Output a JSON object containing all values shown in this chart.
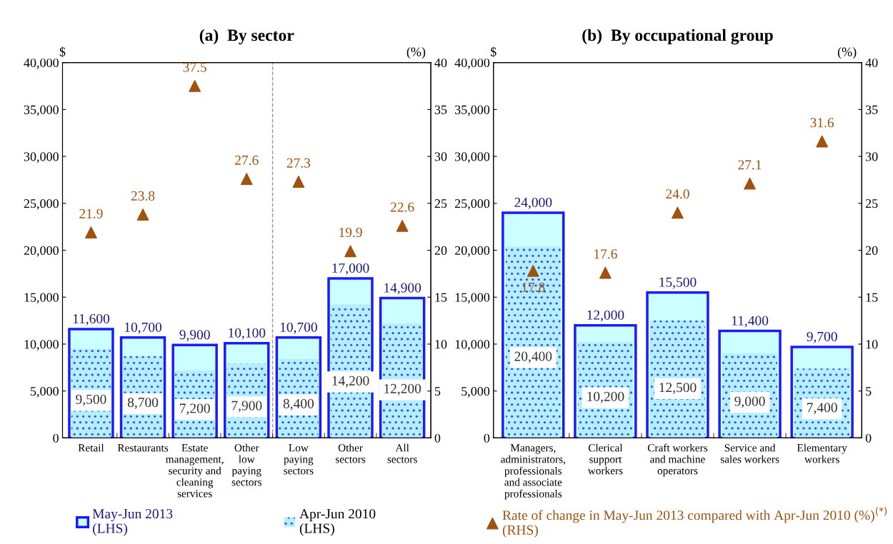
{
  "chart_data": [
    {
      "type": "bar",
      "title": "(a)  By sector",
      "ylabel": "$",
      "y2label": "(%)",
      "categories": [
        "Retail",
        "Restaurants",
        "Estate\nmanagement,\nsecurity and\ncleaning\nservices",
        "Other\nlow\npaying\nsectors",
        "Low\npaying\nsectors",
        "Other\nsectors",
        "All\nsectors"
      ],
      "series": [
        {
          "name": "May-Jun 2013\n(LHS)",
          "color": "#ccffff",
          "values": [
            11600,
            10700,
            9900,
            10100,
            10700,
            17000,
            14900
          ],
          "value_labels": [
            "11,600",
            "10,700",
            "9,900",
            "10,100",
            "10,700",
            "17,000",
            "14,900"
          ]
        },
        {
          "name": "Apr-Jun 2010\n(LHS)",
          "color": "#b5efff",
          "values": [
            9500,
            8700,
            7200,
            7900,
            8400,
            14200,
            12200
          ],
          "value_labels": [
            "9,500",
            "8,700",
            "7,200",
            "7,900",
            "8,400",
            "14,200",
            "12,200"
          ]
        },
        {
          "name": "Rate of change in May-Jun 2013 compared with Apr-Jun 2010 (%)$^{(*)}$\n(RHS)",
          "type": "scatter",
          "axis": "y2",
          "color": "#a0520f",
          "marker": "triangle",
          "values": [
            21.9,
            23.8,
            37.5,
            27.6,
            27.3,
            19.9,
            22.6
          ],
          "value_labels": [
            "21.9",
            "23.8",
            "37.5",
            "27.6",
            "27.3",
            "19.9",
            "22.6"
          ]
        }
      ],
      "ylim": [
        0,
        40000
      ],
      "yticks": [
        {
          "value": 0,
          "label": "0"
        },
        {
          "value": 5000,
          "label": "5,000"
        },
        {
          "value": 10000,
          "label": "10,000"
        },
        {
          "value": 15000,
          "label": "15,000"
        },
        {
          "value": 20000,
          "label": "20,000"
        },
        {
          "value": 25000,
          "label": "25,000"
        },
        {
          "value": 30000,
          "label": "30,000"
        },
        {
          "value": 35000,
          "label": "35,000"
        },
        {
          "value": 40000,
          "label": "40,000"
        }
      ],
      "y2lim": [
        0,
        40
      ],
      "y2ticks": [
        0,
        5,
        10,
        15,
        20,
        25,
        30,
        35,
        40
      ],
      "grid": false,
      "legend": "bottom"
    },
    {
      "type": "bar",
      "title": "(b)  By occupational group",
      "ylabel": "$",
      "y2label": "(%)",
      "categories": [
        "Managers,\nadministrators,\nprofessionals\nand associate\nprofessionals",
        "Clerical\nsupport\nworkers",
        "Craft workers\nand machine\noperators",
        "Service and\nsales workers",
        "Elementary\nworkers"
      ],
      "series": [
        {
          "color": "#ccffff",
          "values": [
            24000,
            12000,
            15500,
            11400,
            9700
          ],
          "value_labels": [
            "24,000",
            "12,000",
            "15,500",
            "11,400",
            "9,700"
          ]
        },
        {
          "color": "#b5efff",
          "values": [
            20400,
            10200,
            12500,
            9000,
            7400
          ],
          "value_labels": [
            "20,400",
            "10,200",
            "12,500",
            "9,000",
            "7,400"
          ]
        },
        {
          "type": "scatter",
          "axis": "y2",
          "color": "#a0520f",
          "marker": "triangle",
          "values": [
            17.8,
            17.6,
            24.0,
            27.1,
            31.6
          ],
          "value_labels": [
            "17.8",
            "17.6",
            "24.0",
            "27.1",
            "31.6"
          ]
        }
      ],
      "ylim": [
        0,
        40000
      ],
      "yticks": [
        {
          "value": 0,
          "label": "0"
        },
        {
          "value": 5000,
          "label": "5,000"
        },
        {
          "value": 10000,
          "label": "10,000"
        },
        {
          "value": 15000,
          "label": "15,000"
        },
        {
          "value": 20000,
          "label": "20,000"
        },
        {
          "value": 25000,
          "label": "25,000"
        },
        {
          "value": 30000,
          "label": "30,000"
        },
        {
          "value": 35000,
          "label": "35,000"
        },
        {
          "value": 40000,
          "label": "40,000"
        }
      ],
      "y2lim": [
        0,
        40
      ],
      "y2ticks": [
        0,
        5,
        10,
        15,
        20,
        25,
        30,
        35,
        40
      ],
      "grid": false,
      "legend": false
    }
  ]
}
